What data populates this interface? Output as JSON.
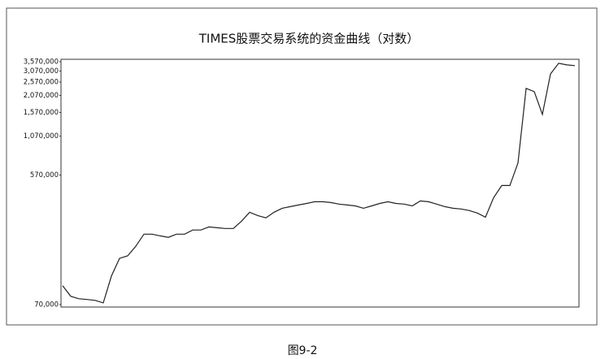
{
  "chart_data": {
    "type": "line",
    "title": "TIMES股票交易系统的资金曲线（对数）",
    "caption": "图9-2",
    "log_scale": true,
    "color": "#222222",
    "ylim": [
      70000,
      3570000
    ],
    "yticks": [
      {
        "value": 70000,
        "label": "70,000"
      },
      {
        "value": 570000,
        "label": "570,000"
      },
      {
        "value": 1070000,
        "label": "1,070,000"
      },
      {
        "value": 1570000,
        "label": "1,570,000"
      },
      {
        "value": 2070000,
        "label": "2,070,000"
      },
      {
        "value": 2570000,
        "label": "2,570,000"
      },
      {
        "value": 3070000,
        "label": "3,070,000"
      },
      {
        "value": 3570000,
        "label": "3,570,000"
      }
    ],
    "values": [
      95000,
      80000,
      77000,
      76000,
      75000,
      72000,
      111000,
      148000,
      154000,
      180000,
      219000,
      219000,
      213000,
      208000,
      219000,
      219000,
      234000,
      234000,
      246000,
      243000,
      240000,
      240000,
      270000,
      312000,
      296000,
      285000,
      312000,
      333000,
      342000,
      351000,
      360000,
      370000,
      370000,
      365000,
      356000,
      351000,
      346000,
      333000,
      346000,
      360000,
      370000,
      360000,
      356000,
      346000,
      375000,
      370000,
      356000,
      342000,
      333000,
      329000,
      321000,
      308000,
      288000,
      395000,
      481000,
      481000,
      694000,
      2320000,
      2200000,
      1520000,
      2930000,
      3480000,
      3390000,
      3350000
    ]
  }
}
